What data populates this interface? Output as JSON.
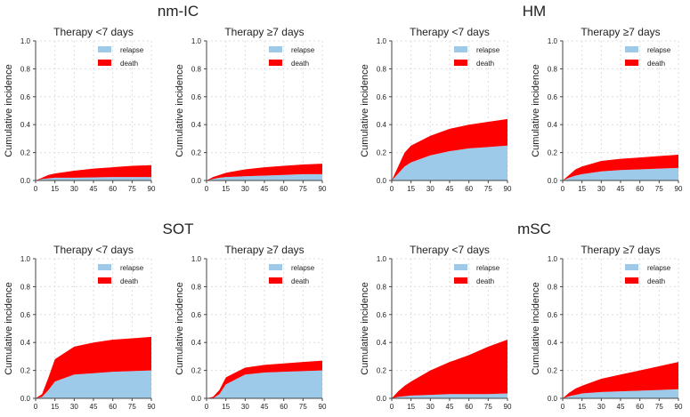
{
  "chart_data": {
    "type": "area",
    "stacked": true,
    "x": [
      0,
      5,
      10,
      15,
      30,
      45,
      60,
      75,
      90
    ],
    "xticks": [
      0,
      15,
      30,
      45,
      60,
      75,
      90
    ],
    "yticks": [
      0.0,
      0.2,
      0.4,
      0.6,
      0.8,
      1.0
    ],
    "ytick_labels": [
      "0.0",
      "0.2",
      "0.4",
      "0.6",
      "0.8",
      "1.0"
    ],
    "xlim": [
      0,
      90
    ],
    "ylim": [
      0,
      1
    ],
    "ylabel": "Cumulative incidence",
    "legend": {
      "placement": "top-right",
      "entries": [
        {
          "label": "relapse",
          "color": "#9ecae9"
        },
        {
          "label": "death",
          "color": "#ff0000"
        }
      ]
    },
    "grid": true,
    "groups": [
      {
        "title": "nm-IC",
        "panels": [
          {
            "title": "Therapy <7 days",
            "series": [
              {
                "name": "relapse",
                "values": [
                  0,
                  0.01,
                  0.015,
                  0.02,
                  0.02,
                  0.022,
                  0.025,
                  0.025,
                  0.025
                ]
              },
              {
                "name": "death",
                "values": [
                  0,
                  0.01,
                  0.025,
                  0.03,
                  0.05,
                  0.063,
                  0.07,
                  0.08,
                  0.085
                ]
              }
            ]
          },
          {
            "title": "Therapy ≥7 days",
            "series": [
              {
                "name": "relapse",
                "values": [
                  0,
                  0.01,
                  0.02,
                  0.025,
                  0.03,
                  0.035,
                  0.04,
                  0.045,
                  0.045
                ]
              },
              {
                "name": "death",
                "values": [
                  0,
                  0.015,
                  0.02,
                  0.03,
                  0.05,
                  0.06,
                  0.065,
                  0.07,
                  0.075
                ]
              }
            ]
          }
        ]
      },
      {
        "title": "HM",
        "panels": [
          {
            "title": "Therapy <7 days",
            "series": [
              {
                "name": "relapse",
                "values": [
                  0,
                  0.05,
                  0.1,
                  0.13,
                  0.18,
                  0.21,
                  0.23,
                  0.24,
                  0.25
                ]
              },
              {
                "name": "death",
                "values": [
                  0,
                  0.05,
                  0.1,
                  0.12,
                  0.14,
                  0.16,
                  0.17,
                  0.18,
                  0.19
                ]
              }
            ]
          },
          {
            "title": "Therapy ≥7 days",
            "series": [
              {
                "name": "relapse",
                "values": [
                  0,
                  0.02,
                  0.035,
                  0.045,
                  0.065,
                  0.075,
                  0.08,
                  0.085,
                  0.09
                ]
              },
              {
                "name": "death",
                "values": [
                  0,
                  0.02,
                  0.045,
                  0.055,
                  0.075,
                  0.08,
                  0.085,
                  0.09,
                  0.095
                ]
              }
            ]
          }
        ]
      },
      {
        "title": "SOT",
        "panels": [
          {
            "title": "Therapy <7 days",
            "series": [
              {
                "name": "relapse",
                "values": [
                  0,
                  0.01,
                  0.06,
                  0.12,
                  0.17,
                  0.18,
                  0.19,
                  0.195,
                  0.2
                ]
              },
              {
                "name": "death",
                "values": [
                  0,
                  0.02,
                  0.09,
                  0.16,
                  0.2,
                  0.22,
                  0.23,
                  0.235,
                  0.24
                ]
              }
            ]
          },
          {
            "title": "Therapy ≥7 days",
            "series": [
              {
                "name": "relapse",
                "values": [
                  0,
                  0.0,
                  0.03,
                  0.1,
                  0.17,
                  0.185,
                  0.19,
                  0.195,
                  0.2
                ]
              },
              {
                "name": "death",
                "values": [
                  0,
                  0.01,
                  0.03,
                  0.05,
                  0.05,
                  0.055,
                  0.06,
                  0.065,
                  0.07
                ]
              }
            ]
          }
        ]
      },
      {
        "title": "mSC",
        "panels": [
          {
            "title": "Therapy <7 days",
            "series": [
              {
                "name": "relapse",
                "values": [
                  0,
                  0.01,
                  0.015,
                  0.02,
                  0.025,
                  0.03,
                  0.03,
                  0.03,
                  0.035
                ]
              },
              {
                "name": "death",
                "values": [
                  0,
                  0.04,
                  0.075,
                  0.1,
                  0.175,
                  0.23,
                  0.28,
                  0.34,
                  0.385
                ]
              }
            ]
          },
          {
            "title": "Therapy ≥7 days",
            "series": [
              {
                "name": "relapse",
                "values": [
                  0,
                  0.015,
                  0.025,
                  0.035,
                  0.045,
                  0.05,
                  0.055,
                  0.06,
                  0.065
                ]
              },
              {
                "name": "death",
                "values": [
                  0,
                  0.025,
                  0.045,
                  0.055,
                  0.095,
                  0.12,
                  0.145,
                  0.17,
                  0.195
                ]
              }
            ]
          }
        ]
      }
    ]
  }
}
